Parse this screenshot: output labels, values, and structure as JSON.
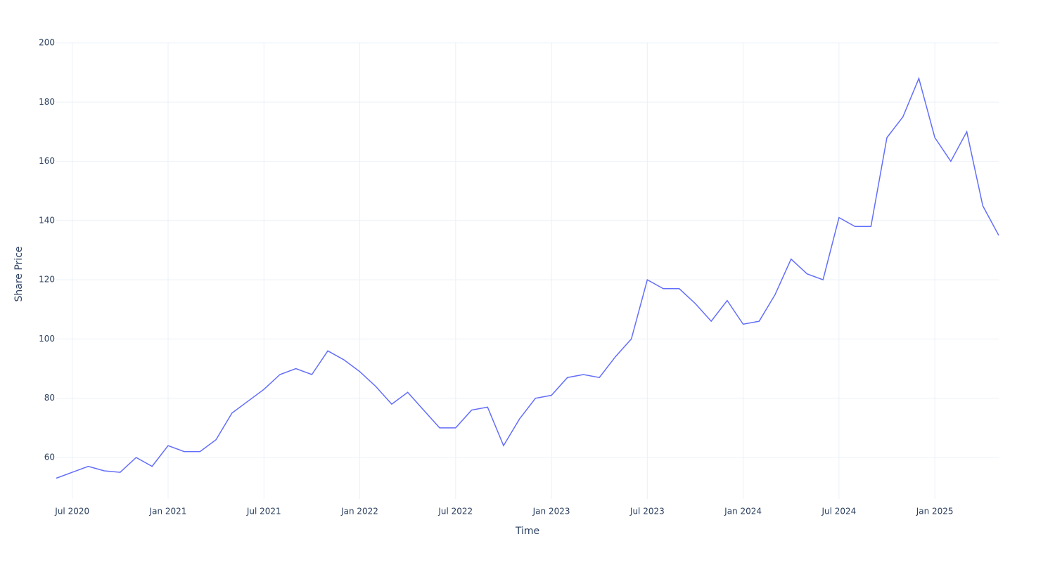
{
  "chart_data": {
    "type": "line",
    "x_label": "Time",
    "y_label": "Share Price",
    "x": [
      "2020-06",
      "2020-07",
      "2020-08",
      "2020-09",
      "2020-10",
      "2020-11",
      "2020-12",
      "2021-01",
      "2021-02",
      "2021-03",
      "2021-04",
      "2021-05",
      "2021-06",
      "2021-07",
      "2021-08",
      "2021-09",
      "2021-10",
      "2021-11",
      "2021-12",
      "2022-01",
      "2022-02",
      "2022-03",
      "2022-04",
      "2022-05",
      "2022-06",
      "2022-07",
      "2022-08",
      "2022-09",
      "2022-10",
      "2022-11",
      "2022-12",
      "2023-01",
      "2023-02",
      "2023-03",
      "2023-04",
      "2023-05",
      "2023-06",
      "2023-07",
      "2023-08",
      "2023-09",
      "2023-10",
      "2023-11",
      "2023-12",
      "2024-01",
      "2024-02",
      "2024-03",
      "2024-04",
      "2024-05",
      "2024-06",
      "2024-07",
      "2024-08",
      "2024-09",
      "2024-10",
      "2024-11",
      "2024-12",
      "2025-01",
      "2025-02",
      "2025-03",
      "2025-04",
      "2025-05"
    ],
    "series": [
      {
        "name": "Share Price",
        "color": "#636efa",
        "values": [
          53,
          55,
          57,
          55.5,
          55,
          60,
          57,
          64,
          62,
          62,
          66,
          75,
          79,
          83,
          88,
          90,
          88,
          96,
          93,
          89,
          84,
          78,
          82,
          76,
          70,
          70,
          76,
          77,
          64,
          73,
          80,
          81,
          87,
          88,
          87,
          94,
          100,
          120,
          117,
          117,
          112,
          106,
          113,
          105,
          106,
          115,
          127,
          122,
          120,
          141,
          138,
          138,
          168,
          175,
          188,
          168,
          160,
          170,
          145,
          135
        ]
      }
    ],
    "xlim": [
      "2020-06",
      "2025-05"
    ],
    "xticks": [
      {
        "value": "2020-07",
        "label": "Jul 2020"
      },
      {
        "value": "2021-01",
        "label": "Jan 2021"
      },
      {
        "value": "2021-07",
        "label": "Jul 2021"
      },
      {
        "value": "2022-01",
        "label": "Jan 2022"
      },
      {
        "value": "2022-07",
        "label": "Jul 2022"
      },
      {
        "value": "2023-01",
        "label": "Jan 2023"
      },
      {
        "value": "2023-07",
        "label": "Jul 2023"
      },
      {
        "value": "2024-01",
        "label": "Jan 2024"
      },
      {
        "value": "2024-07",
        "label": "Jul 2024"
      },
      {
        "value": "2025-01",
        "label": "Jan 2025"
      }
    ],
    "ylim": [
      46,
      200
    ],
    "yticks": [
      60,
      80,
      100,
      120,
      140,
      160,
      180,
      200
    ],
    "grid": true
  }
}
